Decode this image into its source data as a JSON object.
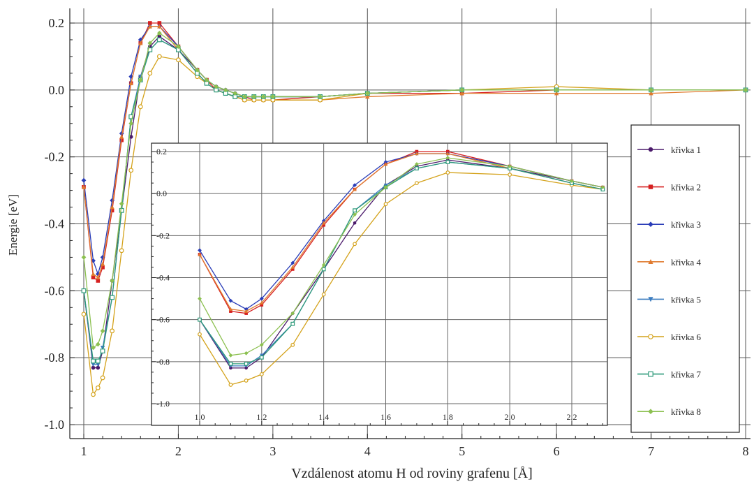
{
  "chart_data": [
    {
      "id": "main",
      "type": "line",
      "xlabel": "Vzdálenost atomu H od roviny grafenu [Å]",
      "ylabel": "Energie [eV]",
      "xlim": [
        1,
        8
      ],
      "ylim": [
        -1.0,
        0.2
      ],
      "xticks": [
        "1",
        "2",
        "3",
        "4",
        "5",
        "6",
        "7",
        "8"
      ],
      "yticks": [
        "0.2",
        "0.0",
        "-0.2",
        "-0.4",
        "-0.6",
        "-0.8",
        "-1.0"
      ],
      "grid": true,
      "x": [
        1.0,
        1.1,
        1.15,
        1.2,
        1.3,
        1.4,
        1.5,
        1.6,
        1.7,
        1.8,
        2.0,
        2.2,
        2.3,
        2.4,
        2.5,
        2.6,
        2.7,
        2.8,
        2.9,
        3.0,
        3.5,
        4.0,
        5.0,
        6.0,
        7.0,
        8.0
      ],
      "series": [
        {
          "name": "křivka 1",
          "color": "#4b1a6b",
          "marker": "circle",
          "values": [
            -0.6,
            -0.83,
            -0.83,
            -0.78,
            -0.57,
            -0.36,
            -0.14,
            0.04,
            0.13,
            0.16,
            0.12,
            0.06,
            0.03,
            0.01,
            0.0,
            -0.01,
            -0.02,
            -0.02,
            -0.02,
            -0.02,
            -0.02,
            -0.01,
            0.0,
            0.0,
            0.0,
            0.0
          ]
        },
        {
          "name": "křivka 2",
          "color": "#d62020",
          "marker": "square",
          "values": [
            -0.29,
            -0.56,
            -0.57,
            -0.53,
            -0.36,
            -0.15,
            0.02,
            0.14,
            0.2,
            0.2,
            0.13,
            0.06,
            0.03,
            0.0,
            -0.01,
            -0.02,
            -0.02,
            -0.03,
            -0.03,
            -0.03,
            -0.02,
            -0.01,
            -0.01,
            0.0,
            0.0,
            0.0
          ]
        },
        {
          "name": "křivka 3",
          "color": "#2a3db8",
          "marker": "diamond",
          "values": [
            -0.27,
            -0.51,
            -0.55,
            -0.5,
            -0.33,
            -0.13,
            0.04,
            0.15,
            0.19,
            0.19,
            0.13,
            0.06,
            0.03,
            0.01,
            0.0,
            -0.01,
            -0.02,
            -0.02,
            -0.02,
            -0.02,
            -0.02,
            -0.01,
            0.0,
            0.0,
            0.0,
            0.0
          ]
        },
        {
          "name": "křivka 4",
          "color": "#e07a2e",
          "marker": "triangle",
          "values": [
            -0.29,
            -0.55,
            -0.56,
            -0.52,
            -0.35,
            -0.14,
            0.02,
            0.14,
            0.19,
            0.19,
            0.12,
            0.05,
            0.02,
            0.0,
            -0.01,
            -0.02,
            -0.03,
            -0.03,
            -0.03,
            -0.03,
            -0.03,
            -0.02,
            -0.01,
            -0.01,
            -0.01,
            0.0
          ]
        },
        {
          "name": "křivka 5",
          "color": "#3a7bbf",
          "marker": "triangle-down",
          "values": [
            -0.6,
            -0.82,
            -0.82,
            -0.77,
            -0.62,
            -0.36,
            -0.08,
            0.04,
            0.12,
            0.15,
            0.12,
            0.05,
            0.02,
            0.0,
            -0.01,
            -0.02,
            -0.02,
            -0.02,
            -0.02,
            -0.02,
            -0.02,
            -0.01,
            0.0,
            0.0,
            0.0,
            0.0
          ]
        },
        {
          "name": "křivka 6",
          "color": "#d4a21a",
          "marker": "circle-open",
          "values": [
            -0.67,
            -0.91,
            -0.89,
            -0.86,
            -0.72,
            -0.48,
            -0.24,
            -0.05,
            0.05,
            0.1,
            0.09,
            0.04,
            0.02,
            0.0,
            -0.01,
            -0.02,
            -0.03,
            -0.03,
            -0.03,
            -0.03,
            -0.03,
            -0.01,
            0.0,
            0.01,
            0.0,
            0.0
          ]
        },
        {
          "name": "křivka 7",
          "color": "#2e9a7a",
          "marker": "square-open",
          "values": [
            -0.6,
            -0.81,
            -0.81,
            -0.78,
            -0.62,
            -0.36,
            -0.08,
            0.03,
            0.12,
            0.15,
            0.12,
            0.05,
            0.02,
            0.0,
            -0.01,
            -0.02,
            -0.02,
            -0.02,
            -0.02,
            -0.02,
            -0.02,
            -0.01,
            0.0,
            0.0,
            0.0,
            0.0
          ]
        },
        {
          "name": "křivka 8",
          "color": "#8cc050",
          "marker": "diamond",
          "values": [
            -0.5,
            -0.77,
            -0.76,
            -0.72,
            -0.57,
            -0.34,
            -0.1,
            0.03,
            0.14,
            0.17,
            0.13,
            0.06,
            0.03,
            0.01,
            0.0,
            -0.01,
            -0.02,
            -0.02,
            -0.02,
            -0.02,
            -0.02,
            -0.01,
            0.0,
            0.0,
            0.0,
            0.0
          ]
        }
      ]
    },
    {
      "id": "inset",
      "type": "line",
      "xlim": [
        0.95,
        2.35
      ],
      "ylim": [
        -1.02,
        0.22
      ],
      "xticks": [
        "1.0",
        "1.2",
        "1.4",
        "1.6",
        "1.8",
        "2.0",
        "2.2"
      ],
      "yticks": [
        "0.2",
        "0.0",
        "-0.2",
        "-0.4",
        "-0.6",
        "-0.8",
        "-1.0"
      ],
      "grid": true,
      "x": [
        1.0,
        1.1,
        1.15,
        1.2,
        1.3,
        1.4,
        1.5,
        1.6,
        1.7,
        1.8,
        2.0,
        2.2,
        2.3
      ]
    }
  ],
  "legend": {
    "position": "right",
    "items": [
      "křivka 1",
      "křivka 2",
      "křivka 3",
      "křivka 4",
      "křivka 5",
      "křivka 6",
      "křivka 7",
      "křivka 8"
    ]
  }
}
